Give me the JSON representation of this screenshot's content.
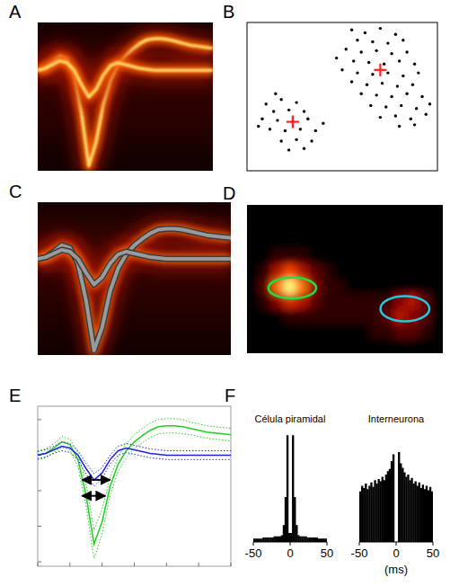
{
  "chart_data": [
    {
      "type": "density",
      "label": "A",
      "xlim": [
        0,
        24
      ],
      "ylim": [
        -1.05,
        0.5
      ],
      "tick_labels": false,
      "x": [
        0,
        1,
        2,
        3,
        4,
        5,
        6,
        7,
        8,
        9,
        10,
        11,
        12,
        13,
        14,
        15,
        16,
        17,
        18,
        19,
        20,
        21,
        22,
        23,
        24
      ],
      "series": [
        {
          "values": [
            0,
            0.02,
            0.08,
            0.15,
            0.12,
            -0.05,
            -0.45,
            -1.0,
            -0.75,
            -0.35,
            -0.1,
            0.05,
            0.15,
            0.22,
            0.28,
            0.32,
            0.33,
            0.33,
            0.32,
            0.3,
            0.28,
            0.26,
            0.25,
            0.24,
            0.23
          ]
        },
        {
          "values": [
            0,
            0.02,
            0.06,
            0.1,
            0.08,
            0,
            -0.15,
            -0.28,
            -0.2,
            -0.05,
            0.05,
            0.08,
            0.06,
            0.04,
            0.02,
            0.01,
            0,
            0,
            0,
            0,
            0,
            0,
            0,
            0,
            0
          ]
        }
      ]
    },
    {
      "type": "scatter",
      "label": "B",
      "xlim": [
        0,
        1
      ],
      "ylim": [
        0,
        1
      ],
      "tick_labels": false,
      "series": [
        {
          "color": "#000000",
          "marker": "dot",
          "x": [
            0.55,
            0.62,
            0.7,
            0.78,
            0.58,
            0.66,
            0.74,
            0.82,
            0.52,
            0.6,
            0.68,
            0.76,
            0.84,
            0.56,
            0.64,
            0.72,
            0.8,
            0.88,
            0.5,
            0.58,
            0.66,
            0.74,
            0.82,
            0.9,
            0.55,
            0.63,
            0.71,
            0.79,
            0.87,
            0.6,
            0.68,
            0.76,
            0.84,
            0.92,
            0.65,
            0.73,
            0.81,
            0.89,
            0.7,
            0.78,
            0.86,
            0.94,
            0.8,
            0.88,
            0.47,
            0.96,
            0.1,
            0.18,
            0.26,
            0.14,
            0.22,
            0.3,
            0.08,
            0.16,
            0.24,
            0.32,
            0.12,
            0.2,
            0.28,
            0.36,
            0.18,
            0.26,
            0.34,
            0.22,
            0.3,
            0.06,
            0.4,
            0.15
          ],
          "values": [
            0.95,
            0.93,
            0.96,
            0.92,
            0.88,
            0.87,
            0.86,
            0.88,
            0.82,
            0.8,
            0.81,
            0.79,
            0.8,
            0.74,
            0.73,
            0.72,
            0.74,
            0.72,
            0.68,
            0.66,
            0.65,
            0.66,
            0.64,
            0.66,
            0.6,
            0.58,
            0.59,
            0.57,
            0.58,
            0.52,
            0.51,
            0.5,
            0.52,
            0.5,
            0.44,
            0.43,
            0.44,
            0.42,
            0.36,
            0.37,
            0.35,
            0.38,
            0.3,
            0.31,
            0.76,
            0.45,
            0.45,
            0.48,
            0.46,
            0.4,
            0.41,
            0.4,
            0.35,
            0.34,
            0.33,
            0.35,
            0.28,
            0.27,
            0.28,
            0.27,
            0.2,
            0.21,
            0.2,
            0.14,
            0.15,
            0.3,
            0.32,
            0.52
          ]
        },
        {
          "color": "#ff2020",
          "marker": "cross",
          "x": [
            0.7,
            0.24
          ],
          "values": [
            0.68,
            0.33
          ]
        }
      ]
    },
    {
      "type": "density_mean",
      "label": "C",
      "xlim": [
        0,
        24
      ],
      "ylim": [
        -1.05,
        0.62
      ],
      "tick_labels": false,
      "x": [
        0,
        1,
        2,
        3,
        4,
        5,
        6,
        7,
        8,
        9,
        10,
        11,
        12,
        13,
        14,
        15,
        16,
        17,
        18,
        19,
        20,
        21,
        22,
        23,
        24
      ],
      "series": [
        {
          "color": "#9a9a9a",
          "values": [
            0,
            0.02,
            0.08,
            0.15,
            0.12,
            -0.05,
            -0.45,
            -1.0,
            -0.75,
            -0.35,
            -0.1,
            0.05,
            0.15,
            0.22,
            0.28,
            0.32,
            0.33,
            0.33,
            0.32,
            0.3,
            0.28,
            0.26,
            0.25,
            0.24,
            0.23
          ]
        },
        {
          "color": "#9a9a9a",
          "values": [
            0,
            0.02,
            0.06,
            0.1,
            0.08,
            0,
            -0.15,
            -0.28,
            -0.2,
            -0.05,
            0.05,
            0.08,
            0.06,
            0.04,
            0.02,
            0.01,
            0,
            0,
            0,
            0,
            0,
            0,
            0,
            0,
            0
          ]
        }
      ]
    },
    {
      "type": "heatmap",
      "label": "D",
      "xlim": [
        0,
        16
      ],
      "ylim": [
        0,
        10
      ],
      "zlim": [
        0,
        10
      ],
      "tick_labels": false,
      "cells": [
        [
          0,
          0,
          0,
          0,
          0,
          0,
          0,
          0,
          0,
          0,
          0,
          0,
          0,
          0,
          0,
          0
        ],
        [
          0,
          0,
          0,
          0,
          0,
          0,
          0,
          0,
          0,
          0,
          0,
          0,
          0,
          0,
          0,
          0
        ],
        [
          0,
          0,
          0,
          0,
          0,
          0,
          0,
          0,
          0,
          0,
          0,
          0,
          0,
          0,
          0,
          0
        ],
        [
          0,
          0,
          1,
          1,
          1,
          0,
          0,
          0,
          0,
          0,
          0,
          0,
          0,
          0,
          0,
          0
        ],
        [
          0,
          1,
          4,
          6,
          4,
          2,
          1,
          0,
          0,
          0,
          0,
          0,
          0,
          0,
          0,
          0
        ],
        [
          0,
          2,
          7,
          10,
          7,
          3,
          1,
          1,
          0,
          0,
          0,
          0,
          0,
          0,
          0,
          0
        ],
        [
          0,
          1,
          3,
          5,
          4,
          2,
          1,
          1,
          1,
          1,
          1,
          1,
          3,
          4,
          2,
          0
        ],
        [
          0,
          0,
          0,
          1,
          1,
          1,
          1,
          1,
          1,
          1,
          1,
          2,
          4,
          3,
          2,
          0
        ],
        [
          0,
          0,
          0,
          0,
          0,
          0,
          0,
          0,
          0,
          0,
          1,
          1,
          2,
          2,
          1,
          0
        ],
        [
          0,
          0,
          0,
          0,
          0,
          0,
          0,
          0,
          0,
          0,
          0,
          0,
          0,
          0,
          0,
          0
        ]
      ],
      "regions": [
        {
          "center": [
            3.7,
            5.6
          ],
          "radii": [
            1.95,
            0.7
          ],
          "color": "#22dd44"
        },
        {
          "center": [
            12.9,
            7.0
          ],
          "radii": [
            2.0,
            0.85
          ],
          "color": "#22c8e0"
        }
      ]
    },
    {
      "type": "line",
      "label": "E",
      "xlim": [
        0,
        24
      ],
      "ylim": [
        -1.25,
        0.55
      ],
      "tick_labels": false,
      "xticks": [
        0,
        4,
        8,
        12,
        16,
        20,
        24
      ],
      "yticks": [
        -1.2,
        -0.8,
        -0.4,
        0,
        0.4
      ],
      "x": [
        0,
        1,
        2,
        3,
        4,
        5,
        6,
        7,
        8,
        9,
        10,
        11,
        12,
        13,
        14,
        15,
        16,
        17,
        18,
        19,
        20,
        21,
        22,
        23,
        24
      ],
      "series": [
        {
          "color": "#22cc22",
          "values": [
            0,
            0.02,
            0.08,
            0.15,
            0.12,
            -0.05,
            -0.45,
            -1.0,
            -0.75,
            -0.35,
            -0.1,
            0.05,
            0.15,
            0.22,
            0.28,
            0.32,
            0.33,
            0.33,
            0.32,
            0.3,
            0.28,
            0.26,
            0.25,
            0.24,
            0.23
          ],
          "errors": [
            0.05,
            0.05,
            0.05,
            0.06,
            0.06,
            0.08,
            0.12,
            0.16,
            0.14,
            0.1,
            0.08,
            0.08,
            0.08,
            0.08,
            0.08,
            0.08,
            0.08,
            0.08,
            0.08,
            0.07,
            0.07,
            0.07,
            0.07,
            0.07,
            0.07
          ]
        },
        {
          "color": "#2222dd",
          "values": [
            0,
            0.02,
            0.06,
            0.1,
            0.08,
            0,
            -0.15,
            -0.28,
            -0.2,
            -0.05,
            0.05,
            0.08,
            0.06,
            0.04,
            0.02,
            0.01,
            0,
            0,
            0,
            0,
            0,
            0,
            0,
            0,
            0
          ],
          "errors": [
            0.04,
            0.04,
            0.04,
            0.05,
            0.05,
            0.05,
            0.06,
            0.07,
            0.06,
            0.05,
            0.05,
            0.05,
            0.05,
            0.05,
            0.05,
            0.05,
            0.05,
            0.05,
            0.05,
            0.05,
            0.05,
            0.05,
            0.05,
            0.05,
            0.05
          ]
        }
      ]
    },
    {
      "type": "histogram",
      "label": "F",
      "title": "Célula piramidal",
      "xlim": [
        -50,
        50
      ],
      "ylim": [
        0,
        100
      ],
      "xticks": [
        -50,
        0,
        50
      ],
      "tick_labels": "x",
      "color": "#000000",
      "bins": [
        -50,
        -47.5,
        -45,
        -42.5,
        -40,
        -37.5,
        -35,
        -32.5,
        -30,
        -27.5,
        -25,
        -22.5,
        -20,
        -17.5,
        -15,
        -12.5,
        -10,
        -7.5,
        -5,
        -2.5,
        0,
        2.5,
        5,
        7.5,
        10,
        12.5,
        15,
        17.5,
        20,
        22.5,
        25,
        27.5,
        30,
        32.5,
        35,
        37.5,
        40,
        42.5,
        45,
        47.5,
        50
      ],
      "values": [
        3,
        3,
        3,
        3,
        3,
        4,
        4,
        4,
        4,
        4,
        4,
        5,
        5,
        5,
        5,
        6,
        15,
        40,
        95,
        8,
        8,
        95,
        40,
        15,
        6,
        5,
        5,
        5,
        5,
        4,
        4,
        4,
        4,
        4,
        4,
        3,
        3,
        3,
        3,
        3
      ]
    },
    {
      "type": "histogram",
      "title": "Interneurona",
      "xlabel": "(ms)",
      "xlim": [
        -50,
        50
      ],
      "ylim": [
        0,
        100
      ],
      "xticks": [
        -50,
        0,
        50
      ],
      "tick_labels": "x",
      "color": "#000000",
      "bins": [
        -50,
        -47.5,
        -45,
        -42.5,
        -40,
        -37.5,
        -35,
        -32.5,
        -30,
        -27.5,
        -25,
        -22.5,
        -20,
        -17.5,
        -15,
        -12.5,
        -10,
        -7.5,
        -5,
        -2.5,
        0,
        2.5,
        5,
        7.5,
        10,
        12.5,
        15,
        17.5,
        20,
        22.5,
        25,
        27.5,
        30,
        32.5,
        35,
        37.5,
        40,
        42.5,
        45,
        47.5,
        50
      ],
      "values": [
        45,
        50,
        48,
        52,
        47,
        50,
        53,
        49,
        55,
        52,
        56,
        54,
        58,
        55,
        60,
        63,
        65,
        72,
        78,
        0,
        0,
        80,
        70,
        66,
        62,
        58,
        60,
        55,
        57,
        52,
        54,
        50,
        53,
        48,
        51,
        47,
        50,
        46,
        49,
        45
      ]
    }
  ]
}
